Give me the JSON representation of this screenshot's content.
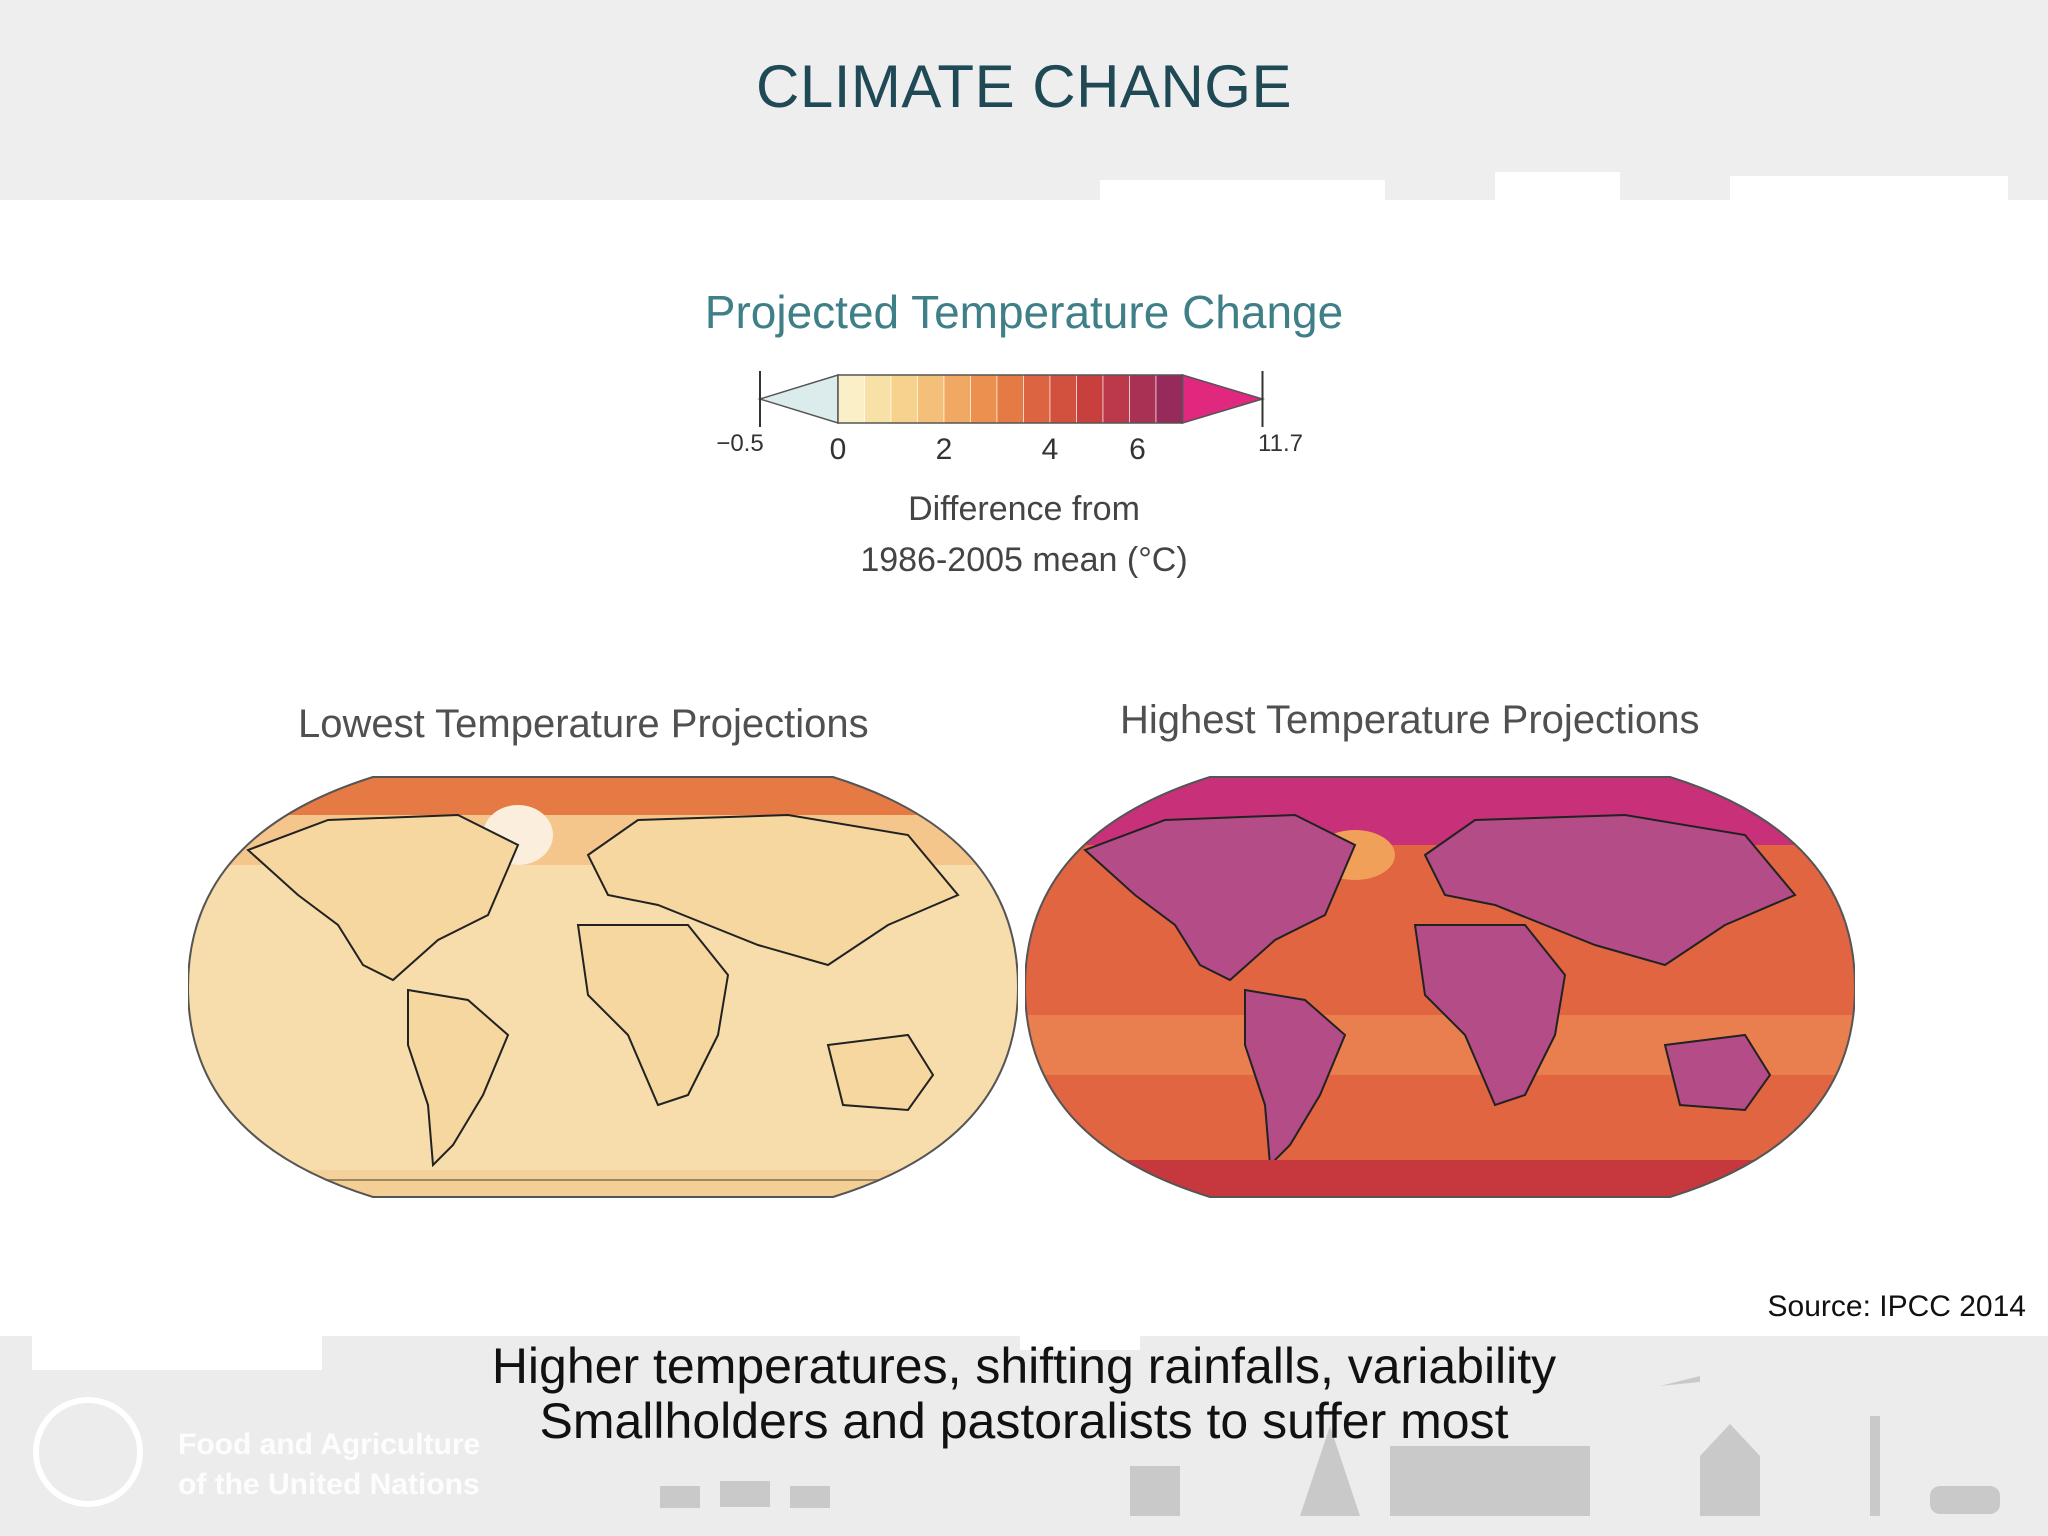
{
  "header": {
    "title": "CLIMATE CHANGE"
  },
  "figure": {
    "title": "Projected Temperature Change",
    "colorbar": {
      "tick_labels": [
        "−0.5",
        "0",
        "2",
        "4",
        "6",
        "11.7"
      ],
      "colors": [
        "#dcecec",
        "#fbefc8",
        "#f8e1a6",
        "#f7d28d",
        "#f4bf78",
        "#f1a862",
        "#ec9050",
        "#e57a44",
        "#dc6440",
        "#d2503e",
        "#c8403e",
        "#bb3948",
        "#a93254",
        "#962a5b",
        "#e0287e"
      ],
      "caption_line1": "Difference from",
      "caption_line2": "1986-2005 mean (°C)"
    },
    "maps": [
      {
        "title": "Lowest Temperature Projections",
        "palette": {
          "ocean": "#f7ddab",
          "land": "#f5d79f",
          "arctic": "#e57a44"
        }
      },
      {
        "title": "Highest Temperature Projections",
        "palette": {
          "ocean": "#e06540",
          "land": "#b44c88",
          "arctic": "#c8307a"
        }
      }
    ],
    "source": "Source: IPCC 2014"
  },
  "footer": {
    "line1": "Higher temperatures, shifting rainfalls, variability",
    "line2": "Smallholders and pastoralists to suffer most",
    "org_line1": "Food and Agriculture",
    "org_line2": "of the United Nations"
  }
}
